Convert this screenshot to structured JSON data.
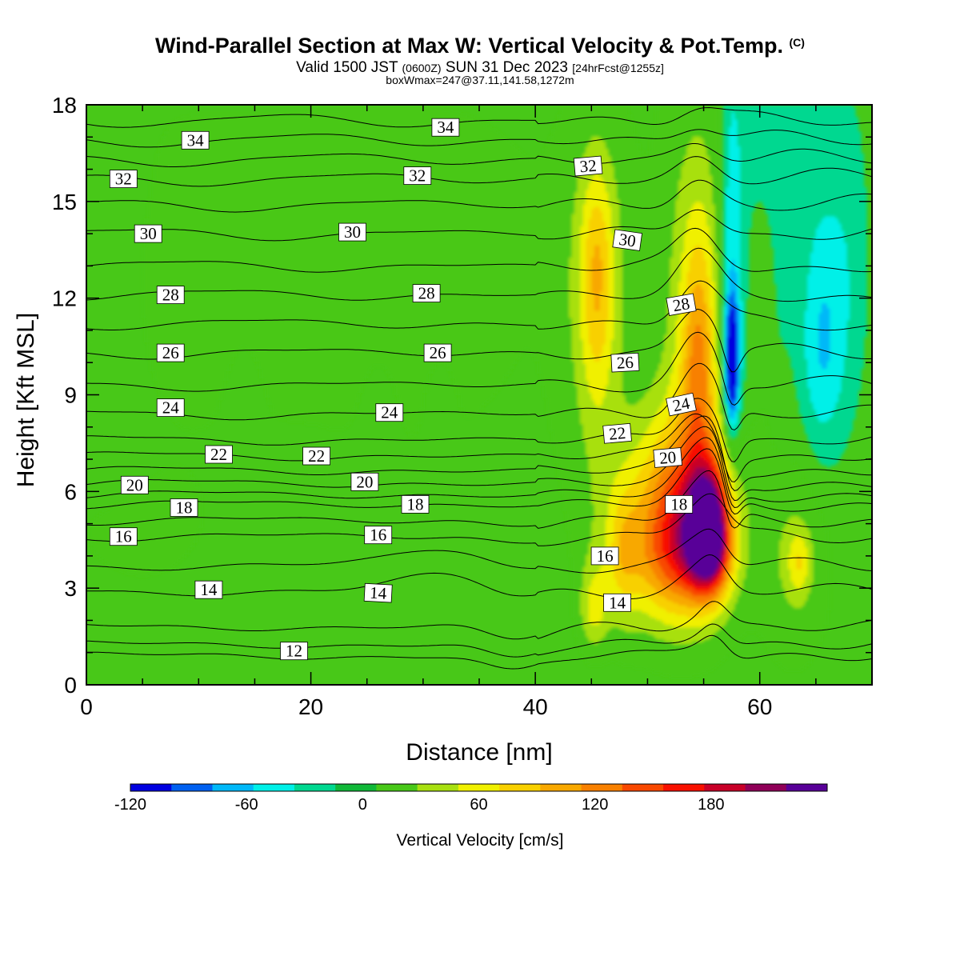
{
  "chart_data": {
    "type": "heatmap",
    "title": "Wind-Parallel Section at Max W: Vertical Velocity & Pot.Temp.",
    "title_mark": "(C)",
    "subtitle_main": "Valid 1500 JST",
    "subtitle_z": "(0600Z)",
    "subtitle_date": "SUN 31 Dec 2023",
    "subtitle_fcst": "[24hrFcst@1255z]",
    "subtitle2": "boxWmax=247@37.11,141.58,1272m",
    "xlabel": "Distance [nm]",
    "ylabel": "Height [Kft MSL]",
    "xlim": [
      0,
      70
    ],
    "ylim": [
      0,
      18
    ],
    "x_ticks": [
      0,
      20,
      40,
      60
    ],
    "y_ticks": [
      0,
      3,
      6,
      9,
      12,
      15,
      18
    ],
    "colorbar": {
      "title": "Vertical Velocity [cm/s]",
      "tick_values": [
        -120,
        -60,
        0,
        60,
        120,
        180
      ],
      "tick_labels": [
        "-120",
        "-60",
        "0",
        "60",
        "120",
        "180"
      ],
      "range": [
        -120,
        240
      ],
      "colors": [
        "#0000e0",
        "#0060f0",
        "#00b8f8",
        "#00f0e8",
        "#00d890",
        "#10b838",
        "#48c818",
        "#a8e010",
        "#f0f000",
        "#f8d000",
        "#f8a800",
        "#f88000",
        "#f84800",
        "#f81000",
        "#c80028",
        "#900058",
        "#580098"
      ]
    },
    "background_velocity": 0,
    "velocity_features": [
      {
        "x": 50.5,
        "y": 4.3,
        "w": 5,
        "hd": 2.5,
        "hu": 3.5,
        "val": 60
      },
      {
        "x": 53.5,
        "y": 4.5,
        "w": 3.8,
        "hd": 2.2,
        "hu": 3.5,
        "val": 130
      },
      {
        "x": 55.5,
        "y": 4.6,
        "w": 1.8,
        "hd": 1.6,
        "hu": 2.0,
        "val": 210
      },
      {
        "x": 54.5,
        "y": 11.0,
        "w": 3.2,
        "hd": 6.0,
        "hu": 8.0,
        "val": 45
      },
      {
        "x": 54.5,
        "y": 10.0,
        "w": 1.5,
        "hd": 3.0,
        "hu": 4.0,
        "val": 70
      },
      {
        "x": 45.5,
        "y": 12.0,
        "w": 3.0,
        "hd": 5.0,
        "hu": 5.5,
        "val": 40
      },
      {
        "x": 45.5,
        "y": 13.0,
        "w": 1.4,
        "hd": 4.0,
        "hu": 3.0,
        "val": 55
      },
      {
        "x": 45.2,
        "y": 2.3,
        "w": 1.3,
        "hd": 1.2,
        "hu": 1.5,
        "val": 50
      },
      {
        "x": 47.8,
        "y": 4.0,
        "w": 1.4,
        "hd": 2.0,
        "hu": 2.0,
        "val": 40
      },
      {
        "x": 57.5,
        "y": 11.5,
        "w": 1.1,
        "hd": 4.5,
        "hu": 8.0,
        "val": -70
      },
      {
        "x": 57.5,
        "y": 10.0,
        "w": 0.6,
        "hd": 1.8,
        "hu": 1.8,
        "val": -120
      },
      {
        "x": 65.5,
        "y": 10.5,
        "w": 2.0,
        "hd": 3.5,
        "hu": 4.5,
        "val": -55
      },
      {
        "x": 61.0,
        "y": 13.0,
        "w": 2.0,
        "hd": 4.0,
        "hu": 6.0,
        "val": -25
      },
      {
        "x": 68.0,
        "y": 13.0,
        "w": 2.0,
        "hd": 5.0,
        "hu": 6.0,
        "val": -25
      },
      {
        "x": 62.0,
        "y": 17.0,
        "w": 4.0,
        "hd": 3.0,
        "hu": 3.0,
        "val": -20
      },
      {
        "x": 63.0,
        "y": 4.0,
        "w": 3.0,
        "hd": 3.0,
        "hu": 3.0,
        "val": 30
      },
      {
        "x": 63.5,
        "y": 3.8,
        "w": 1.0,
        "hd": 1.0,
        "hu": 1.0,
        "val": 45
      },
      {
        "x": 60.5,
        "y": 12.5,
        "w": 1.0,
        "hd": 4.0,
        "hu": 3.5,
        "val": 25
      },
      {
        "x": 8.0,
        "y": 13.0,
        "w": 14.0,
        "hd": 6.0,
        "hu": 6.0,
        "val": 12
      },
      {
        "x": 5.0,
        "y": 4.0,
        "w": 8.0,
        "hd": 2.5,
        "hu": 2.5,
        "val": 12
      },
      {
        "x": 30.0,
        "y": 14.5,
        "w": 13.0,
        "hd": 8.0,
        "hu": 4.0,
        "val": 14
      },
      {
        "x": 14.0,
        "y": 8.0,
        "w": 1.5,
        "hd": 2.5,
        "hu": 2.5,
        "val": -10
      },
      {
        "x": 26.0,
        "y": 8.0,
        "w": 1.5,
        "hd": 2.5,
        "hu": 2.0,
        "val": -10
      },
      {
        "x": 31.5,
        "y": 8.5,
        "w": 1.2,
        "hd": 2.0,
        "hu": 1.5,
        "val": -10
      },
      {
        "x": 3.0,
        "y": 15.0,
        "w": 3.0,
        "hd": 8.0,
        "hu": 3.0,
        "val": -8
      },
      {
        "x": 20.0,
        "y": 2.0,
        "w": 22.0,
        "hd": 2.5,
        "hu": 2.5,
        "val": -10
      },
      {
        "x": 38.0,
        "y": 4.0,
        "w": 4.0,
        "hd": 3.5,
        "hu": 2.0,
        "val": -8
      }
    ],
    "theta_isolines": [
      {
        "value": 11,
        "h": 0.9
      },
      {
        "value": 12,
        "h": 1.25
      },
      {
        "value": 13,
        "h": 1.8
      },
      {
        "value": 14,
        "h": 2.9
      },
      {
        "value": 15,
        "h": 3.7
      },
      {
        "value": 16,
        "h": 4.6
      },
      {
        "value": 17,
        "h": 5.1
      },
      {
        "value": 18,
        "h": 5.6
      },
      {
        "value": 19,
        "h": 5.9
      },
      {
        "value": 20,
        "h": 6.25
      },
      {
        "value": 21,
        "h": 6.65
      },
      {
        "value": 22,
        "h": 7.1
      },
      {
        "value": 23,
        "h": 7.6
      },
      {
        "value": 24,
        "h": 8.4
      },
      {
        "value": 25,
        "h": 9.3
      },
      {
        "value": 26,
        "h": 10.3
      },
      {
        "value": 27,
        "h": 11.2
      },
      {
        "value": 28,
        "h": 12.1
      },
      {
        "value": 29,
        "h": 13.0
      },
      {
        "value": 30,
        "h": 14.0
      },
      {
        "value": 31,
        "h": 14.9
      },
      {
        "value": 32,
        "h": 15.7
      },
      {
        "value": 33,
        "h": 16.3
      },
      {
        "value": 34,
        "h": 16.9
      },
      {
        "value": 35,
        "h": 17.5
      }
    ],
    "contour_labels": [
      {
        "text": "34",
        "x": 9.7,
        "y": 16.9,
        "rot": 0
      },
      {
        "text": "34",
        "x": 32.0,
        "y": 17.3,
        "rot": 0
      },
      {
        "text": "32",
        "x": 3.3,
        "y": 15.7,
        "rot": 0
      },
      {
        "text": "32",
        "x": 29.5,
        "y": 15.8,
        "rot": 0
      },
      {
        "text": "32",
        "x": 44.7,
        "y": 16.1,
        "rot": -5
      },
      {
        "text": "30",
        "x": 5.5,
        "y": 14.0,
        "rot": 0
      },
      {
        "text": "30",
        "x": 23.7,
        "y": 14.05,
        "rot": 0
      },
      {
        "text": "30",
        "x": 48.2,
        "y": 13.8,
        "rot": 8
      },
      {
        "text": "28",
        "x": 7.5,
        "y": 12.1,
        "rot": 0
      },
      {
        "text": "28",
        "x": 30.3,
        "y": 12.15,
        "rot": 0
      },
      {
        "text": "28",
        "x": 53.0,
        "y": 11.8,
        "rot": -10
      },
      {
        "text": "26",
        "x": 7.5,
        "y": 10.3,
        "rot": 0
      },
      {
        "text": "26",
        "x": 31.3,
        "y": 10.3,
        "rot": 0
      },
      {
        "text": "26",
        "x": 48.0,
        "y": 10.0,
        "rot": -3
      },
      {
        "text": "24",
        "x": 7.5,
        "y": 8.6,
        "rot": 0
      },
      {
        "text": "24",
        "x": 27.0,
        "y": 8.45,
        "rot": 0
      },
      {
        "text": "24",
        "x": 53.0,
        "y": 8.7,
        "rot": -12
      },
      {
        "text": "22",
        "x": 11.8,
        "y": 7.15,
        "rot": 0
      },
      {
        "text": "22",
        "x": 20.5,
        "y": 7.1,
        "rot": 0
      },
      {
        "text": "22",
        "x": 47.3,
        "y": 7.8,
        "rot": -5
      },
      {
        "text": "20",
        "x": 4.3,
        "y": 6.2,
        "rot": 0
      },
      {
        "text": "20",
        "x": 24.8,
        "y": 6.3,
        "rot": 0
      },
      {
        "text": "20",
        "x": 51.8,
        "y": 7.05,
        "rot": -5
      },
      {
        "text": "18",
        "x": 8.7,
        "y": 5.5,
        "rot": 0
      },
      {
        "text": "18",
        "x": 29.3,
        "y": 5.6,
        "rot": 0
      },
      {
        "text": "18",
        "x": 52.8,
        "y": 5.6,
        "rot": 0
      },
      {
        "text": "16",
        "x": 3.3,
        "y": 4.6,
        "rot": 0
      },
      {
        "text": "16",
        "x": 26.0,
        "y": 4.65,
        "rot": 0
      },
      {
        "text": "16",
        "x": 46.2,
        "y": 4.0,
        "rot": 0
      },
      {
        "text": "14",
        "x": 10.9,
        "y": 2.95,
        "rot": 0
      },
      {
        "text": "14",
        "x": 26.0,
        "y": 2.85,
        "rot": 3
      },
      {
        "text": "14",
        "x": 47.3,
        "y": 2.55,
        "rot": 0
      },
      {
        "text": "12",
        "x": 18.5,
        "y": 1.05,
        "rot": 0
      }
    ]
  }
}
